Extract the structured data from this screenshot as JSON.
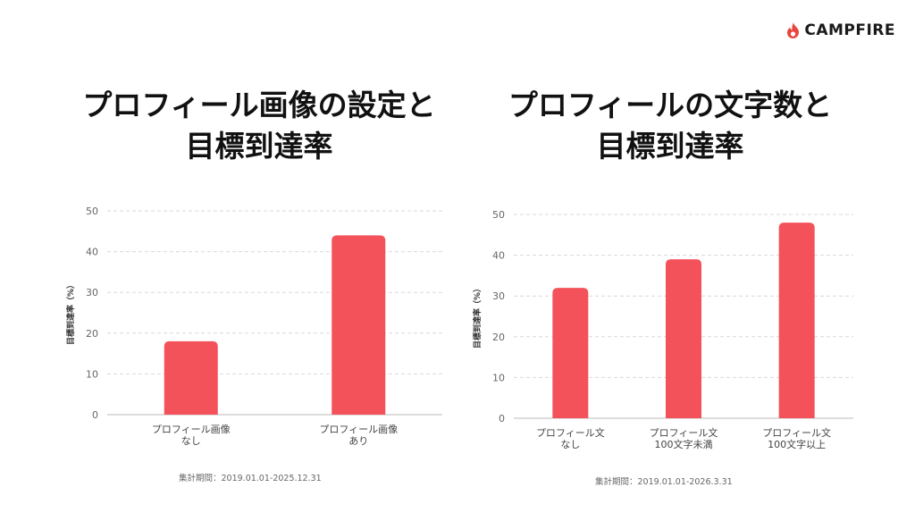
{
  "brand": {
    "name": "CAMPFIRE",
    "icon": "flame-icon",
    "color": "#e8453c"
  },
  "colors": {
    "bar": "#f4525a",
    "grid": "#d9d9d9",
    "axis": "#bbbbbb"
  },
  "chart_data": [
    {
      "type": "bar",
      "title": "プロフィール画像の設定と目標到達率",
      "title_lines": [
        "プロフィール画像の設定と",
        "目標到達率"
      ],
      "categories": [
        [
          "プロフィール画像",
          "なし"
        ],
        [
          "プロフィール画像",
          "あり"
        ]
      ],
      "values": [
        18,
        44
      ],
      "ylabel": "目標到達率（%）",
      "ylim": [
        0,
        50
      ],
      "yticks": [
        0,
        10,
        20,
        30,
        40,
        50
      ],
      "grid": true,
      "note": "集計期間：2019.01.01-2025.12.31"
    },
    {
      "type": "bar",
      "title": "プロフィールの文字数と目標到達率",
      "title_lines": [
        "プロフィールの文字数と",
        "目標到達率"
      ],
      "categories": [
        [
          "プロフィール文",
          "なし"
        ],
        [
          "プロフィール文",
          "100文字未満"
        ],
        [
          "プロフィール文",
          "100文字以上"
        ]
      ],
      "values": [
        32,
        39,
        48
      ],
      "ylabel": "目標到達率（%）",
      "ylim": [
        0,
        50
      ],
      "yticks": [
        0,
        10,
        20,
        30,
        40,
        50
      ],
      "grid": true,
      "note": "集計期間：2019.01.01-2026.3.31"
    }
  ]
}
